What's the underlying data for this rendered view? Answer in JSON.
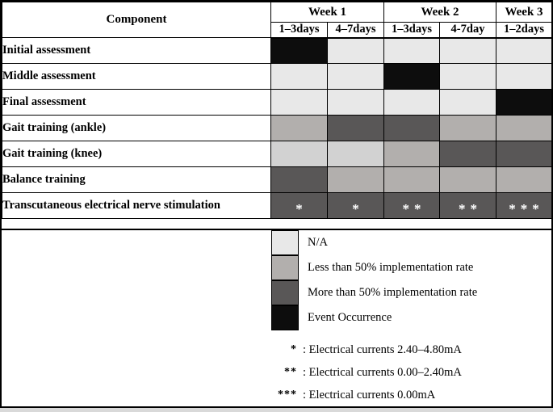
{
  "palette": {
    "na": "#e8e8e8",
    "na_light2": "#d2d2d2",
    "lt50": "#b2afad",
    "gt50": "#595757",
    "event": "#0d0d0d",
    "mark_text": "#ffffff",
    "border": "#000000"
  },
  "table": {
    "corner_label": "Component",
    "week_groups": [
      {
        "label": "Week 1",
        "span": 2
      },
      {
        "label": "Week 2",
        "span": 2
      },
      {
        "label": "Week 3",
        "span": 1
      }
    ],
    "day_headers": [
      "1–3days",
      "4–7days",
      "1–3days",
      "4-7day",
      "1–2days"
    ],
    "rows": [
      {
        "label": "Initial assessment",
        "cells": [
          "event",
          "na",
          "na",
          "na",
          "na"
        ]
      },
      {
        "label": "Middle assessment",
        "cells": [
          "na",
          "na",
          "event",
          "na",
          "na"
        ]
      },
      {
        "label": "Final assessment",
        "cells": [
          "na",
          "na",
          "na",
          "na",
          "event"
        ]
      },
      {
        "label": "Gait training (ankle)",
        "cells": [
          "lt50",
          "gt50",
          "gt50",
          "lt50",
          "lt50"
        ]
      },
      {
        "label": "Gait training (knee)",
        "cells": [
          "na_light2",
          "na_light2",
          "lt50",
          "gt50",
          "gt50"
        ]
      },
      {
        "label": "Balance training",
        "cells": [
          "gt50",
          "lt50",
          "lt50",
          "lt50",
          "lt50"
        ]
      },
      {
        "label": "Transcutaneous electrical nerve stimulation",
        "cells": [
          "gt50",
          "gt50",
          "gt50",
          "gt50",
          "gt50"
        ],
        "marks": [
          "*",
          "*",
          "**",
          "**",
          "***"
        ]
      }
    ]
  },
  "legend": {
    "colors": [
      {
        "key": "na",
        "label": "N/A"
      },
      {
        "key": "lt50",
        "label": "Less than 50% implementation rate"
      },
      {
        "key": "gt50",
        "label": "More than 50% implementation rate"
      },
      {
        "key": "event",
        "label": "Event Occurrence"
      }
    ],
    "notes": [
      {
        "mark": "*",
        "text": ": Electrical currents 2.40–4.80mA"
      },
      {
        "mark": "**",
        "text": ": Electrical currents 0.00–2.40mA"
      },
      {
        "mark": "***",
        "text": ": Electrical currents 0.00mA"
      }
    ]
  },
  "chart_data": {
    "type": "heatmap",
    "title": "",
    "column_groups": [
      {
        "label": "Week 1",
        "columns": [
          "1–3days",
          "4–7days"
        ]
      },
      {
        "label": "Week 2",
        "columns": [
          "1–3days",
          "4-7day"
        ]
      },
      {
        "label": "Week 3",
        "columns": [
          "1–2days"
        ]
      }
    ],
    "columns": [
      "Week 1 / 1–3days",
      "Week 1 / 4–7days",
      "Week 2 / 1–3days",
      "Week 2 / 4-7day",
      "Week 3 / 1–2days"
    ],
    "rows": [
      "Initial assessment",
      "Middle assessment",
      "Final assessment",
      "Gait training (ankle)",
      "Gait training (knee)",
      "Balance training",
      "Transcutaneous electrical nerve stimulation"
    ],
    "values": [
      [
        "Event Occurrence",
        "N/A",
        "N/A",
        "N/A",
        "N/A"
      ],
      [
        "N/A",
        "N/A",
        "Event Occurrence",
        "N/A",
        "N/A"
      ],
      [
        "N/A",
        "N/A",
        "N/A",
        "N/A",
        "Event Occurrence"
      ],
      [
        "Less than 50% implementation rate",
        "More than 50% implementation rate",
        "More than 50% implementation rate",
        "Less than 50% implementation rate",
        "Less than 50% implementation rate"
      ],
      [
        "N/A",
        "N/A",
        "Less than 50% implementation rate",
        "More than 50% implementation rate",
        "More than 50% implementation rate"
      ],
      [
        "More than 50% implementation rate",
        "Less than 50% implementation rate",
        "Less than 50% implementation rate",
        "Less than 50% implementation rate",
        "Less than 50% implementation rate"
      ],
      [
        "More than 50% implementation rate *",
        "More than 50% implementation rate *",
        "More than 50% implementation rate **",
        "More than 50% implementation rate **",
        "More than 50% implementation rate ***"
      ]
    ],
    "cell_marks_row": "Transcutaneous electrical nerve stimulation",
    "cell_marks": [
      "*",
      "*",
      "**",
      "**",
      "***"
    ],
    "legend_entries": [
      "N/A",
      "Less than 50% implementation rate",
      "More than 50% implementation rate",
      "Event Occurrence"
    ],
    "annotations": [
      "* : Electrical currents 2.40–4.80mA",
      "** : Electrical currents 0.00–2.40mA",
      "*** : Electrical currents 0.00mA"
    ],
    "legend_position": "bottom",
    "grid": true
  }
}
